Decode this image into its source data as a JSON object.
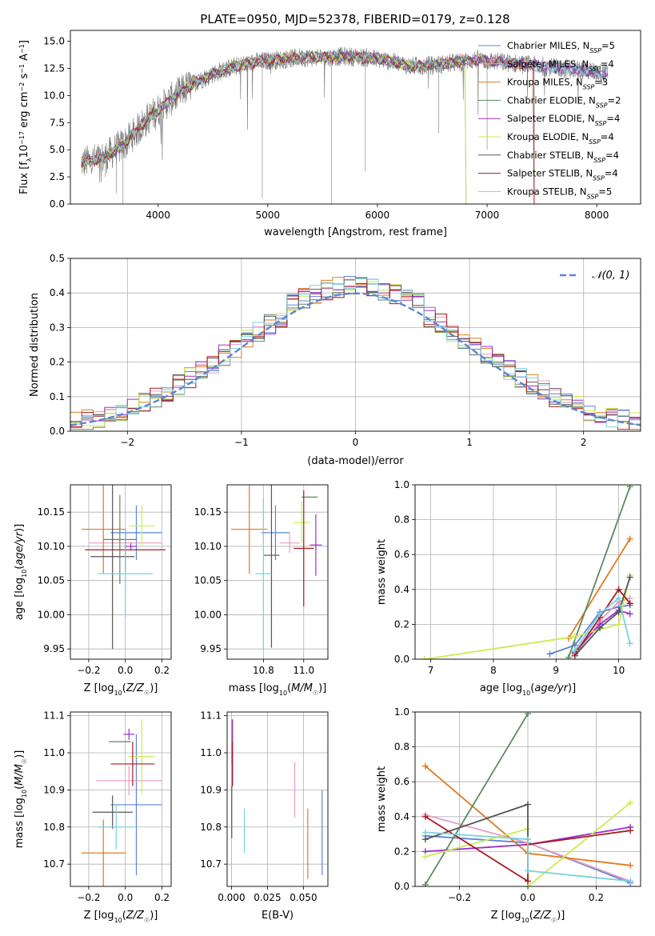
{
  "figure": {
    "title": "PLATE=0950, MJD=52378, FIBERID=0179, z=0.128"
  },
  "colors": {
    "Chabrier MILES": "#5b84d6",
    "Salpeter MILES": "#e89ec3",
    "Kroupa MILES": "#e07b1e",
    "Chabrier ELODIE": "#5a8a5e",
    "Salpeter ELODIE": "#9b30c8",
    "Kroupa ELODIE": "#cdea55",
    "Chabrier STELIB": "#555555",
    "Salpeter STELIB": "#a81c22",
    "Kroupa STELIB": "#79d2dc"
  },
  "chart_data": [
    {
      "id": "spectrum",
      "type": "line",
      "title": "PLATE=0950, MJD=52378, FIBERID=0179, z=0.128",
      "xlabel": "wavelength [Angstrom, rest frame]",
      "ylabel": "Flux [f_λ 10^-17 erg cm^-2 s^-1 A^-1]",
      "xlim": [
        3200,
        8400
      ],
      "ylim": [
        0,
        16
      ],
      "xticks": [
        "4000",
        "5000",
        "6000",
        "7000",
        "8000"
      ],
      "yticks": [
        "0.0",
        "2.5",
        "5.0",
        "7.5",
        "10.0",
        "12.5",
        "15.0"
      ],
      "grid": false,
      "legend_position": "top-right",
      "legend": [
        {
          "label": "Chabrier MILES, N",
          "sub": "SSP",
          "tail": "=5",
          "model": "Chabrier MILES"
        },
        {
          "label": "Salpeter MILES, N",
          "sub": "SSP",
          "tail": "=4",
          "model": "Salpeter MILES"
        },
        {
          "label": "Kroupa MILES, N",
          "sub": "SSP",
          "tail": "=3",
          "model": "Kroupa MILES"
        },
        {
          "label": "Chabrier ELODIE, N",
          "sub": "SSP",
          "tail": "=2",
          "model": "Chabrier ELODIE"
        },
        {
          "label": "Salpeter ELODIE, N",
          "sub": "SSP",
          "tail": "=4",
          "model": "Salpeter ELODIE"
        },
        {
          "label": "Kroupa ELODIE, N",
          "sub": "SSP",
          "tail": "=4",
          "model": "Kroupa ELODIE"
        },
        {
          "label": "Chabrier STELIB, N",
          "sub": "SSP",
          "tail": "=4",
          "model": "Chabrier STELIB"
        },
        {
          "label": "Salpeter STELIB, N",
          "sub": "SSP",
          "tail": "=4",
          "model": "Salpeter STELIB"
        },
        {
          "label": "Kroupa STELIB, N",
          "sub": "SSP",
          "tail": "=5",
          "model": "Kroupa STELIB"
        }
      ],
      "data_continuum": {
        "x": [
          3300,
          3500,
          3700,
          3900,
          4100,
          4300,
          4500,
          4700,
          4900,
          5100,
          5300,
          5500,
          5700,
          5900,
          6100,
          6300,
          6500,
          6700,
          6900,
          7100,
          7300,
          7500,
          7700,
          7900,
          8100
        ],
        "y": [
          3.8,
          4.2,
          5.6,
          7.8,
          9.5,
          11.0,
          12.0,
          12.7,
          13.1,
          13.3,
          13.5,
          13.5,
          13.6,
          13.5,
          13.2,
          12.7,
          12.8,
          13.0,
          13.3,
          13.1,
          12.9,
          12.7,
          12.5,
          12.3,
          12.0
        ]
      },
      "model_spectra_cut": {
        "Kroupa ELODIE": 6800,
        "Chabrier ELODIE": 6800,
        "Salpeter STELIB": 7420,
        "Kroupa MILES": 7420
      }
    },
    {
      "id": "residual-histogram",
      "type": "line",
      "xlabel": "(data-model)/error",
      "ylabel": "Normed distribution",
      "xlim": [
        -2.5,
        2.5
      ],
      "ylim": [
        0,
        0.5
      ],
      "xticks": [
        "−2",
        "−1",
        "0",
        "1",
        "2"
      ],
      "yticks": [
        "0.0",
        "0.1",
        "0.2",
        "0.3",
        "0.4",
        "0.5"
      ],
      "grid": true,
      "legend_position": "top-right",
      "legend": [
        {
          "label": "𝒩(0, 1)",
          "style": "dashed"
        }
      ],
      "bins": [
        -2.5,
        -2.4,
        -2.3,
        -2.2,
        -2.1,
        -2.0,
        -1.9,
        -1.8,
        -1.7,
        -1.6,
        -1.5,
        -1.4,
        -1.3,
        -1.2,
        -1.1,
        -1.0,
        -0.9,
        -0.8,
        -0.7,
        -0.6,
        -0.5,
        -0.4,
        -0.3,
        -0.2,
        -0.1,
        0.0,
        0.1,
        0.2,
        0.3,
        0.4,
        0.5,
        0.6,
        0.7,
        0.8,
        0.9,
        1.0,
        1.1,
        1.2,
        1.3,
        1.4,
        1.5,
        1.6,
        1.7,
        1.8,
        1.9,
        2.0,
        2.1,
        2.2,
        2.3,
        2.4,
        2.5
      ],
      "gaussian": {
        "mu": 0,
        "sigma": 1
      }
    },
    {
      "id": "age-vs-Z",
      "type": "scatter",
      "xlabel": "Z [log10(Z/Z☉)]",
      "ylabel": "age [log10(age/yr)]",
      "xlim": [
        -0.3,
        0.25
      ],
      "ylim": [
        9.935,
        10.19
      ],
      "xticks": [
        "−0.2",
        "0.0",
        "0.2"
      ],
      "yticks": [
        "9.95",
        "10.00",
        "10.05",
        "10.10",
        "10.15"
      ],
      "grid": true,
      "points": [
        {
          "model": "Chabrier MILES",
          "x": 0.06,
          "xerr": 0.14,
          "y": 10.12,
          "yerr": 0.04
        },
        {
          "model": "Salpeter MILES",
          "x": 0.0,
          "xerr": 0.2,
          "y": 10.105,
          "yerr": 0.015
        },
        {
          "model": "Kroupa MILES",
          "x": -0.12,
          "xerr": 0.12,
          "y": 10.125,
          "yerr": 0.065
        },
        {
          "model": "Chabrier ELODIE",
          "x": -0.03,
          "xerr": 0.09,
          "y": 10.11,
          "yerr": 0.065
        },
        {
          "model": "Salpeter ELODIE",
          "x": 0.03,
          "xerr": 0.03,
          "y": 10.1,
          "yerr": 0.005
        },
        {
          "model": "Kroupa ELODIE",
          "x": 0.09,
          "xerr": 0.07,
          "y": 10.13,
          "yerr": 0.03
        },
        {
          "model": "Chabrier STELIB",
          "x": -0.07,
          "xerr": 0.12,
          "y": 10.085,
          "yerr": 0.135
        },
        {
          "model": "Salpeter STELIB",
          "x": 0.0,
          "xerr": 0.22,
          "y": 10.095,
          "yerr": 0.03
        },
        {
          "model": "Kroupa STELIB",
          "x": 0.0,
          "xerr": 0.15,
          "y": 10.06,
          "yerr": 0.065
        }
      ]
    },
    {
      "id": "age-vs-mass",
      "type": "scatter",
      "xlabel": "mass [log10(M/M☉)]",
      "ylabel": "",
      "xlim": [
        10.62,
        11.12
      ],
      "ylim": [
        9.935,
        10.19
      ],
      "xticks": [
        "10.8",
        "11.0"
      ],
      "yticks": [
        "9.95",
        "10.00",
        "10.05",
        "10.10",
        "10.15"
      ],
      "grid": true,
      "points": [
        {
          "model": "Chabrier MILES",
          "x": 10.86,
          "xerr": 0.07,
          "y": 10.12,
          "yerr": 0.04
        },
        {
          "model": "Salpeter MILES",
          "x": 10.93,
          "xerr": 0.05,
          "y": 10.105,
          "yerr": 0.015
        },
        {
          "model": "Kroupa MILES",
          "x": 10.73,
          "xerr": 0.09,
          "y": 10.125,
          "yerr": 0.065
        },
        {
          "model": "Chabrier ELODIE",
          "x": 11.03,
          "xerr": 0.04,
          "y": 10.172,
          "yerr": 0.0
        },
        {
          "model": "Salpeter ELODIE",
          "x": 11.06,
          "xerr": 0.03,
          "y": 10.102,
          "yerr": 0.045
        },
        {
          "model": "Kroupa ELODIE",
          "x": 10.99,
          "xerr": 0.04,
          "y": 10.135,
          "yerr": 0.03
        },
        {
          "model": "Chabrier STELIB",
          "x": 10.84,
          "xerr": 0.04,
          "y": 10.087,
          "yerr": 0.135
        },
        {
          "model": "Salpeter STELIB",
          "x": 11.0,
          "xerr": 0.05,
          "y": 10.097,
          "yerr": 0.085
        },
        {
          "model": "Kroupa STELIB",
          "x": 10.8,
          "xerr": 0.04,
          "y": 10.06,
          "yerr": 0.11
        }
      ]
    },
    {
      "id": "mass-weight-vs-age",
      "type": "line",
      "xlabel": "age [log10(age/yr)]",
      "ylabel": "mass weight",
      "xlim": [
        6.75,
        10.35
      ],
      "ylim": [
        0,
        1.0
      ],
      "xticks": [
        "7",
        "8",
        "9",
        "10"
      ],
      "yticks": [
        "0.0",
        "0.2",
        "0.4",
        "0.6",
        "0.8",
        "1.0"
      ],
      "grid": true,
      "series": [
        {
          "model": "Chabrier MILES",
          "x": [
            8.9,
            9.3,
            9.7,
            10.0,
            10.18
          ],
          "y": [
            0.03,
            0.08,
            0.27,
            0.3,
            0.31
          ]
        },
        {
          "model": "Salpeter MILES",
          "x": [
            9.3,
            9.7,
            10.0,
            10.18
          ],
          "y": [
            0.02,
            0.22,
            0.33,
            0.35
          ]
        },
        {
          "model": "Kroupa MILES",
          "x": [
            9.2,
            10.18
          ],
          "y": [
            0.12,
            0.69
          ]
        },
        {
          "model": "Chabrier ELODIE",
          "x": [
            9.2,
            10.18
          ],
          "y": [
            0.01,
            0.99
          ]
        },
        {
          "model": "Salpeter ELODIE",
          "x": [
            9.3,
            9.7,
            10.0,
            10.18
          ],
          "y": [
            0.04,
            0.2,
            0.28,
            0.26
          ]
        },
        {
          "model": "Kroupa ELODIE",
          "x": [
            6.9,
            9.3,
            10.0,
            10.18
          ],
          "y": [
            0.0,
            0.13,
            0.2,
            0.48
          ]
        },
        {
          "model": "Chabrier STELIB",
          "x": [
            9.3,
            9.7,
            10.0,
            10.18
          ],
          "y": [
            0.02,
            0.18,
            0.27,
            0.47
          ]
        },
        {
          "model": "Salpeter STELIB",
          "x": [
            9.3,
            9.7,
            10.0,
            10.18
          ],
          "y": [
            0.03,
            0.24,
            0.4,
            0.32
          ]
        },
        {
          "model": "Kroupa STELIB",
          "x": [
            9.3,
            9.7,
            10.0,
            10.18
          ],
          "y": [
            0.05,
            0.26,
            0.35,
            0.09
          ]
        }
      ]
    },
    {
      "id": "mass-vs-Z",
      "type": "scatter",
      "xlabel": "Z [log10(Z/Z☉)]",
      "ylabel": "mass [log10(M/M☉)]",
      "xlim": [
        -0.3,
        0.25
      ],
      "ylim": [
        10.64,
        11.11
      ],
      "xticks": [
        "−0.2",
        "0.0",
        "0.2"
      ],
      "yticks": [
        "10.7",
        "10.8",
        "10.9",
        "11.0",
        "11.1"
      ],
      "grid": true,
      "points": [
        {
          "model": "Chabrier MILES",
          "x": 0.06,
          "xerr": 0.14,
          "y": 10.86,
          "yerr": 0.19
        },
        {
          "model": "Salpeter MILES",
          "x": 0.02,
          "xerr": 0.18,
          "y": 10.925,
          "yerr": 0.04
        },
        {
          "model": "Kroupa MILES",
          "x": -0.12,
          "xerr": 0.12,
          "y": 10.73,
          "yerr": 0.09
        },
        {
          "model": "Chabrier ELODIE",
          "x": -0.03,
          "xerr": 0.06,
          "y": 11.03,
          "yerr": 0.0
        },
        {
          "model": "Salpeter ELODIE",
          "x": 0.02,
          "xerr": 0.03,
          "y": 11.05,
          "yerr": 0.015
        },
        {
          "model": "Kroupa ELODIE",
          "x": 0.09,
          "xerr": 0.07,
          "y": 10.99,
          "yerr": 0.1
        },
        {
          "model": "Chabrier STELIB",
          "x": -0.07,
          "xerr": 0.11,
          "y": 10.84,
          "yerr": 0.045
        },
        {
          "model": "Salpeter STELIB",
          "x": 0.04,
          "xerr": 0.12,
          "y": 10.97,
          "yerr": 0.06
        },
        {
          "model": "Kroupa STELIB",
          "x": -0.05,
          "xerr": 0.1,
          "y": 10.8,
          "yerr": 0.06
        }
      ]
    },
    {
      "id": "mass-vs-EBV",
      "type": "scatter",
      "xlabel": "E(B-V)",
      "ylabel": "",
      "xlim": [
        -0.003,
        0.067
      ],
      "ylim": [
        10.64,
        11.11
      ],
      "xticks": [
        "0.000",
        "0.025",
        "0.050"
      ],
      "yticks": [
        "10.7",
        "10.8",
        "10.9",
        "11.0",
        "11.1"
      ],
      "grid": true,
      "points": [
        {
          "model": "Chabrier MILES",
          "x": 0.063,
          "y": 10.785,
          "yerr": 0.115
        },
        {
          "model": "Salpeter MILES",
          "x": 0.044,
          "y": 10.9,
          "yerr": 0.075
        },
        {
          "model": "Kroupa MILES",
          "x": 0.053,
          "y": 10.755,
          "yerr": 0.095
        },
        {
          "model": "Chabrier ELODIE",
          "x": 0.0005,
          "y": 11.03,
          "yerr": 0.06
        },
        {
          "model": "Salpeter ELODIE",
          "x": 0.0008,
          "y": 11.0,
          "yerr": 0.09
        },
        {
          "model": "Kroupa ELODIE",
          "x": 0.0003,
          "y": 10.9,
          "yerr": 0.02
        },
        {
          "model": "Chabrier STELIB",
          "x": 0.0002,
          "y": 10.84,
          "yerr": 0.07
        },
        {
          "model": "Salpeter STELIB",
          "x": 0.0006,
          "y": 10.97,
          "yerr": 0.06
        },
        {
          "model": "Kroupa STELIB",
          "x": 0.009,
          "y": 10.79,
          "yerr": 0.06
        }
      ]
    },
    {
      "id": "mass-weight-vs-Z",
      "type": "line",
      "xlabel": "Z [log10(Z/Z☉)]",
      "ylabel": "mass weight",
      "xlim": [
        -0.33,
        0.33
      ],
      "ylim": [
        0,
        1.0
      ],
      "xticks": [
        "−0.2",
        "0.0",
        "0.2"
      ],
      "yticks": [
        "0.0",
        "0.2",
        "0.4",
        "0.6",
        "0.8",
        "1.0"
      ],
      "grid": true,
      "series": [
        {
          "model": "Chabrier MILES",
          "x": [
            -0.3,
            0.0,
            0.3
          ],
          "y": [
            0.29,
            0.25,
            0.02
          ]
        },
        {
          "model": "Salpeter MILES",
          "x": [
            -0.3,
            0.0,
            0.3
          ],
          "y": [
            0.41,
            0.25,
            0.03
          ]
        },
        {
          "model": "Kroupa MILES",
          "x": [
            -0.3,
            0.0,
            0.3
          ],
          "y": [
            0.69,
            0.19,
            0.12
          ]
        },
        {
          "model": "Chabrier ELODIE",
          "x": [
            -0.3,
            0.0
          ],
          "y": [
            0.01,
            0.99
          ]
        },
        {
          "model": "Salpeter ELODIE",
          "x": [
            -0.3,
            0.0,
            0.3
          ],
          "y": [
            0.2,
            0.24,
            0.34
          ]
        },
        {
          "model": "Kroupa ELODIE",
          "x": [
            -0.3,
            0.0,
            0.0,
            0.3
          ],
          "y": [
            0.17,
            0.33,
            0.0,
            0.48
          ]
        },
        {
          "model": "Chabrier STELIB",
          "x": [
            -0.3,
            0.0,
            0.0
          ],
          "y": [
            0.27,
            0.47,
            0.27
          ]
        },
        {
          "model": "Salpeter STELIB",
          "x": [
            -0.3,
            0.0,
            0.0,
            0.3
          ],
          "y": [
            0.4,
            0.03,
            0.24,
            0.32
          ]
        },
        {
          "model": "Kroupa STELIB",
          "x": [
            -0.3,
            0.0,
            0.0,
            0.3
          ],
          "y": [
            0.31,
            0.27,
            0.09,
            0.03
          ]
        }
      ]
    }
  ]
}
